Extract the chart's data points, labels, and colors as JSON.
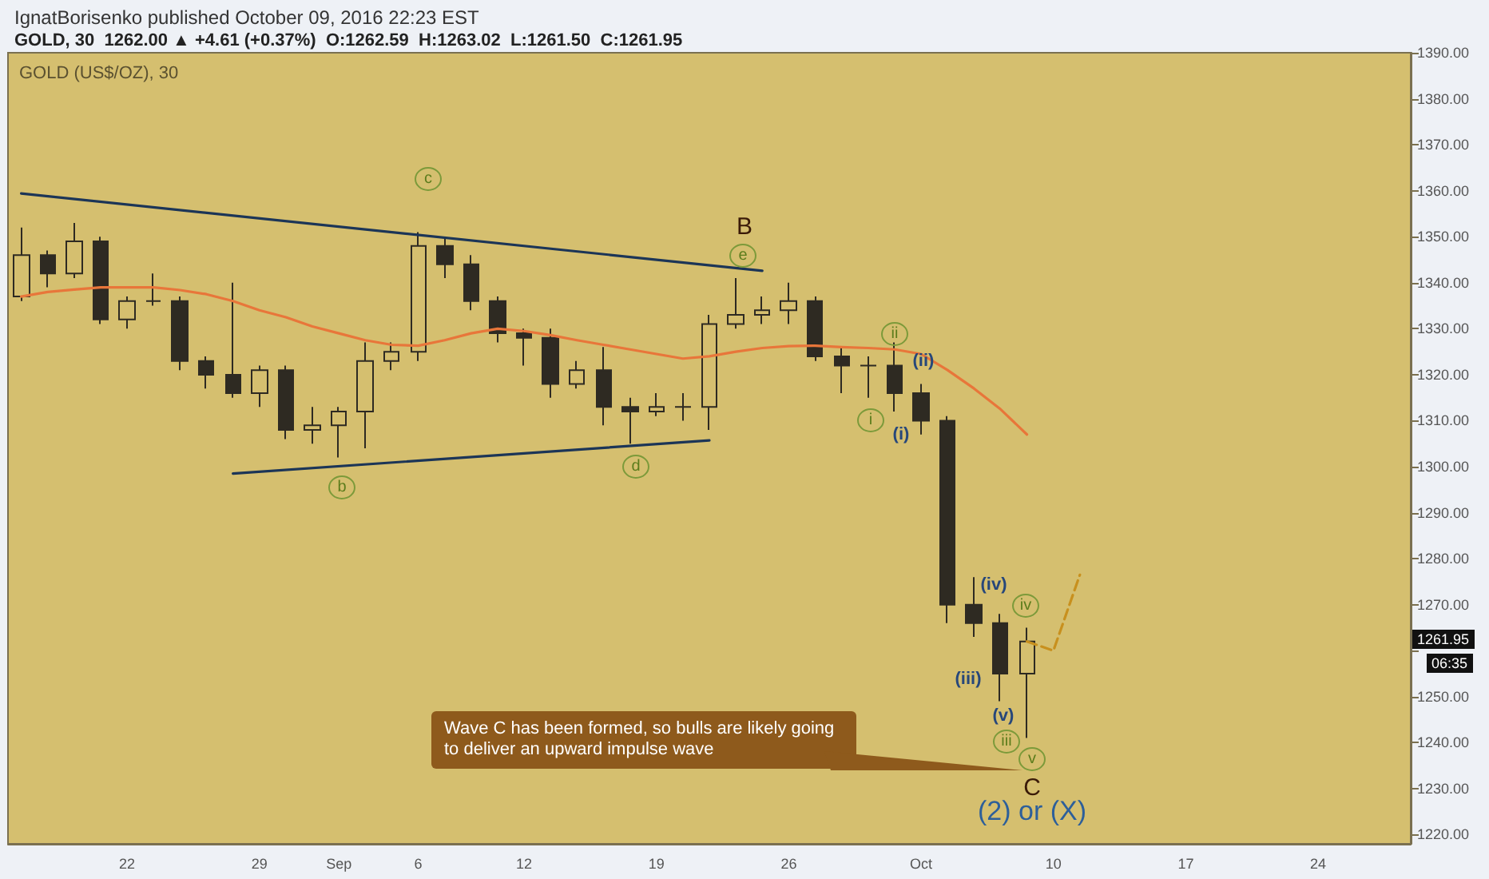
{
  "chart_data": {
    "type": "candlestick",
    "title": "IgnatBorisenko published October 09, 2016 22:23 EST",
    "subtitle": "GOLD, 30  1262.00 ▲ +4.61 (+0.37%)  O:1262.59  H:1263.02  L:1261.50  C:1261.95",
    "categories": [
      null,
      null,
      null,
      null,
      "22",
      null,
      null,
      null,
      null,
      "29",
      null,
      null,
      "Sep",
      null,
      null,
      "6",
      null,
      null,
      null,
      "12",
      null,
      null,
      null,
      null,
      "19",
      null,
      null,
      null,
      null,
      "26",
      null,
      null,
      null,
      null,
      "Oct",
      null,
      null,
      null,
      null,
      "10",
      null,
      null,
      null,
      null,
      "17",
      null,
      null,
      null,
      null,
      "24",
      null,
      null,
      null
    ],
    "ylim": [
      1218,
      1390
    ],
    "yticks": [
      {
        "value": 1220,
        "label": "1220.00"
      },
      {
        "value": 1230,
        "label": "1230.00"
      },
      {
        "value": 1240,
        "label": "1240.00"
      },
      {
        "value": 1250,
        "label": "1250.00"
      },
      {
        "value": 1260,
        "label": null
      },
      {
        "value": 1270,
        "label": "1270.00"
      },
      {
        "value": 1280,
        "label": "1280.00"
      },
      {
        "value": 1290,
        "label": "1290.00"
      },
      {
        "value": 1300,
        "label": "1300.00"
      },
      {
        "value": 1310,
        "label": "1310.00"
      },
      {
        "value": 1320,
        "label": "1320.00"
      },
      {
        "value": 1330,
        "label": "1330.00"
      },
      {
        "value": 1340,
        "label": "1340.00"
      },
      {
        "value": 1350,
        "label": "1350.00"
      },
      {
        "value": 1360,
        "label": "1360.00"
      },
      {
        "value": 1370,
        "label": "1370.00"
      },
      {
        "value": 1380,
        "label": "1380.00"
      },
      {
        "value": 1390,
        "label": "1390.00"
      }
    ],
    "grid": false,
    "series": [
      {
        "type": "candlestick",
        "color": "#2e2a22",
        "ohlc": [
          [
            1337,
            1352,
            1336,
            1346
          ],
          [
            1346,
            1347,
            1339,
            1342
          ],
          [
            1342,
            1353,
            1341,
            1349
          ],
          [
            1349,
            1350,
            1331,
            1332
          ],
          [
            1332,
            1337,
            1330,
            1336
          ],
          [
            1336,
            1342,
            1335,
            1336
          ],
          [
            1336,
            1337,
            1321,
            1323
          ],
          [
            1323,
            1324,
            1317,
            1320
          ],
          [
            1320,
            1340,
            1315,
            1316
          ],
          [
            1316,
            1322,
            1313,
            1321
          ],
          [
            1321,
            1322,
            1306,
            1308
          ],
          [
            1308,
            1313,
            1305,
            1309
          ],
          [
            1309,
            1313,
            1302,
            1312
          ],
          [
            1312,
            1327,
            1304,
            1323
          ],
          [
            1323,
            1327,
            1321,
            1325
          ],
          [
            1325,
            1351,
            1323,
            1348
          ],
          [
            1348,
            1350,
            1341,
            1344
          ],
          [
            1344,
            1346,
            1334,
            1336
          ],
          [
            1336,
            1337,
            1327,
            1329
          ],
          [
            1329,
            1330,
            1322,
            1328
          ],
          [
            1328,
            1330,
            1315,
            1318
          ],
          [
            1318,
            1323,
            1317,
            1321
          ],
          [
            1321,
            1326,
            1309,
            1313
          ],
          [
            1313,
            1315,
            1305,
            1312
          ],
          [
            1312,
            1316,
            1311,
            1313
          ],
          [
            1313,
            1316,
            1310,
            1313
          ],
          [
            1313,
            1333,
            1308,
            1331
          ],
          [
            1331,
            1341,
            1330,
            1333
          ],
          [
            1333,
            1337,
            1331,
            1334
          ],
          [
            1334,
            1340,
            1331,
            1336
          ],
          [
            1336,
            1337,
            1323,
            1324
          ],
          [
            1324,
            1326,
            1316,
            1322
          ],
          [
            1322,
            1324,
            1315,
            1322
          ],
          [
            1322,
            1327,
            1312,
            1316
          ],
          [
            1316,
            1318,
            1307,
            1310
          ],
          [
            1310,
            1311,
            1266,
            1270
          ],
          [
            1270,
            1276,
            1263,
            1266
          ],
          [
            1266,
            1268,
            1249,
            1255
          ],
          [
            1255,
            1265,
            1241,
            1262
          ],
          null,
          null,
          null,
          null,
          null,
          null,
          null,
          null,
          null,
          null,
          null,
          null,
          null,
          null
        ]
      },
      {
        "type": "line",
        "color": "#e8763a",
        "marker": "none",
        "values": [
          1337,
          1338,
          1338.5,
          1339,
          1339,
          1339,
          1338.4,
          1337.5,
          1336,
          1334,
          1332.5,
          1330.5,
          1329,
          1327.5,
          1326.5,
          1326.3,
          1327.5,
          1329,
          1330,
          1329.5,
          1328.6,
          1327.5,
          1326.5,
          1325.5,
          1324.5,
          1323.5,
          1324,
          1325,
          1325.8,
          1326.2,
          1326.3,
          1326,
          1325.8,
          1325.5,
          1324.5,
          1321,
          1317,
          1312.5,
          1307,
          null,
          null,
          null,
          null,
          null,
          null,
          null,
          null,
          null,
          null,
          null,
          null,
          null,
          null
        ]
      },
      {
        "type": "line",
        "color": "#1c3557",
        "marker": "none",
        "values": [
          1359.4,
          null,
          null,
          null,
          null,
          null,
          null,
          null,
          null,
          null,
          null,
          null,
          null,
          null,
          null,
          null,
          null,
          null,
          null,
          null,
          null,
          null,
          null,
          null,
          null,
          null,
          null,
          null,
          1342.6,
          null,
          null,
          null,
          null,
          null,
          null,
          null,
          null,
          null,
          null,
          null,
          null,
          null,
          null,
          null,
          null,
          null,
          null,
          null,
          null,
          null,
          null,
          null,
          null
        ]
      },
      {
        "type": "line",
        "color": "#1c3557",
        "marker": "none",
        "values": [
          null,
          null,
          null,
          null,
          null,
          null,
          null,
          null,
          1298.5,
          null,
          null,
          null,
          null,
          null,
          null,
          null,
          null,
          null,
          null,
          null,
          null,
          null,
          null,
          null,
          null,
          null,
          1305.7,
          null,
          null,
          null,
          null,
          null,
          null,
          null,
          null,
          null,
          null,
          null,
          null,
          null,
          null,
          null,
          null,
          null,
          null,
          null,
          null,
          null,
          null,
          null,
          null,
          null,
          null
        ]
      },
      {
        "type": "line",
        "color": "#c8901e",
        "marker": "none",
        "line_style": "dashed",
        "values": [
          null,
          null,
          null,
          null,
          null,
          null,
          null,
          null,
          null,
          null,
          null,
          null,
          null,
          null,
          null,
          null,
          null,
          null,
          null,
          null,
          null,
          null,
          null,
          null,
          null,
          null,
          null,
          null,
          null,
          null,
          null,
          null,
          null,
          null,
          null,
          null,
          null,
          null,
          1262,
          1260,
          1276.5,
          null,
          null,
          null,
          null,
          null,
          null,
          null,
          null,
          null,
          null,
          null,
          null
        ]
      }
    ],
    "annotations": [
      "GOLD (US$/OZ), 30",
      "Wave C has been formed, so bulls are likely going to deliver an upward impulse wave",
      "06:35",
      "1261.95",
      "c",
      "b",
      "B",
      "e",
      "d",
      "i",
      "ii",
      "(i)",
      "(ii)",
      "(iii)",
      "(iv)",
      "(v)",
      "iii",
      "iv",
      "v",
      "C",
      "(2) or (X)"
    ]
  }
}
